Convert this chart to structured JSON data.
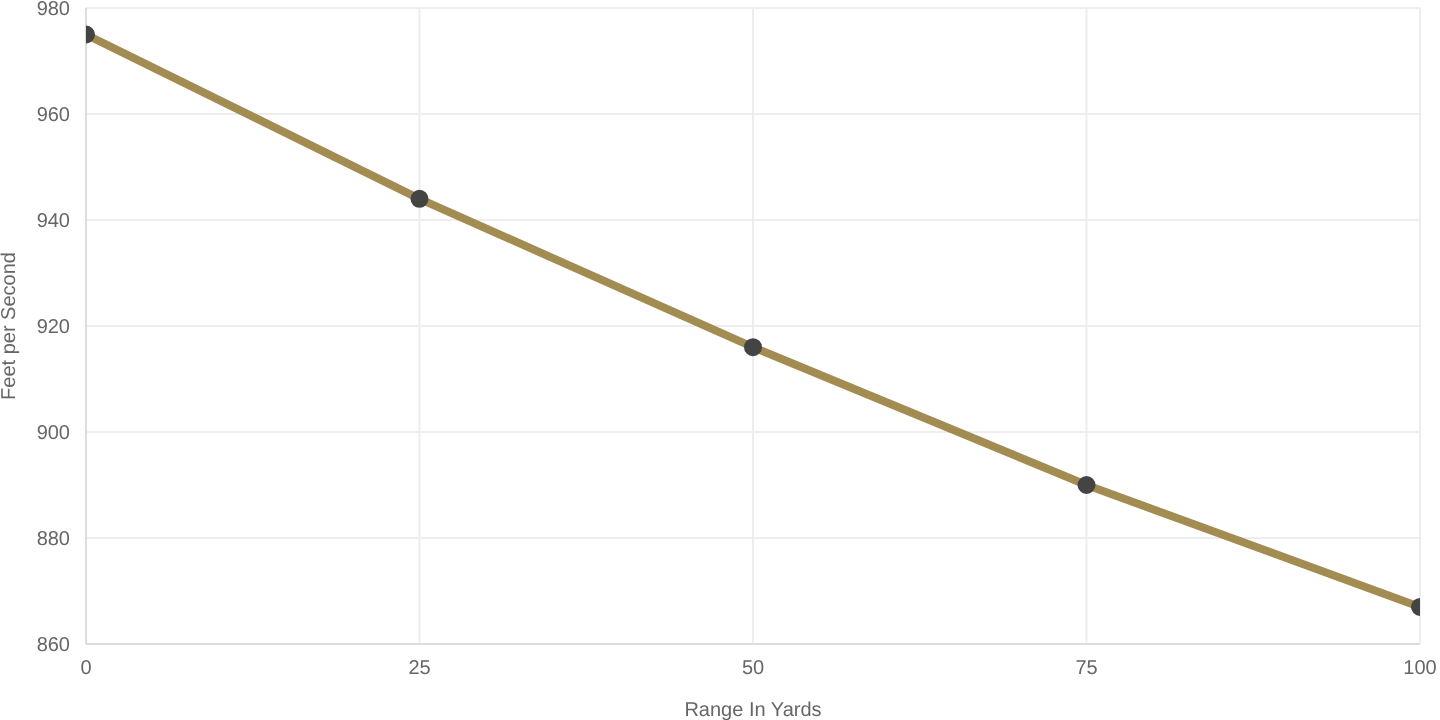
{
  "chart_data": {
    "type": "line",
    "xlabel": "Range In Yards",
    "ylabel": "Feet per Second",
    "x": [
      0,
      25,
      50,
      75,
      100
    ],
    "series": [
      {
        "color": "#a38c52",
        "values": [
          975,
          944,
          916,
          890,
          867
        ]
      }
    ],
    "xlim": [
      0,
      100
    ],
    "xticks": [
      0,
      25,
      50,
      75,
      100
    ],
    "ylim": [
      860,
      980
    ],
    "yticks": [
      860,
      880,
      900,
      920,
      940,
      960,
      980
    ],
    "grid": true,
    "marker": "circle",
    "line_style": "solid"
  }
}
